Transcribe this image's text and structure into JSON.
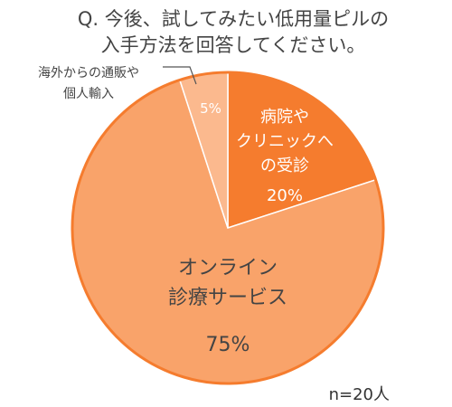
{
  "title_lines": [
    "Q.  今後、試してみたい低用量ピルの",
    "入手方法を回答してください。"
  ],
  "note": "n=20人",
  "chart_data": {
    "type": "pie",
    "title": "Q.  今後、試してみたい低用量ピルの入手方法を回答してください。",
    "sample_size": "n=20人",
    "slices": [
      {
        "label_lines": [
          "病院や",
          "クリニックへ",
          "の受診"
        ],
        "value": 20,
        "value_label": "20%",
        "color": "#F57C2E"
      },
      {
        "label_lines": [
          "オンライン",
          "診療サービス"
        ],
        "value": 75,
        "value_label": "75%",
        "color": "#F9A36A"
      },
      {
        "label_lines": [
          "海外からの通販や",
          "個人輸入"
        ],
        "value": 5,
        "value_label": "5%",
        "color": "#FBB98E"
      }
    ]
  }
}
